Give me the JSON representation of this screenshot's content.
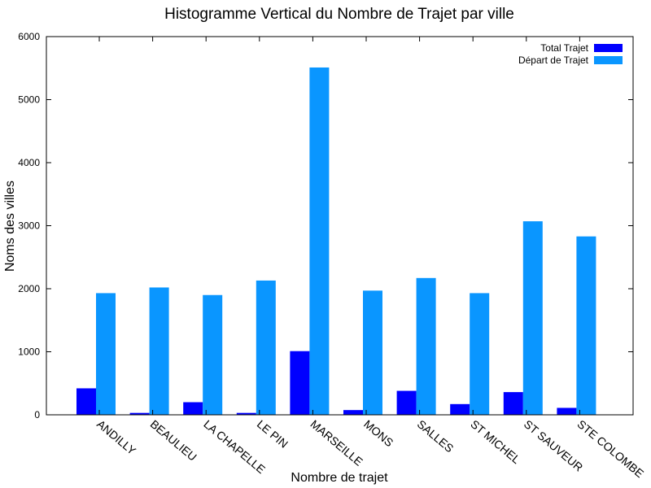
{
  "chart_data": {
    "type": "bar",
    "title": "Histogramme Vertical du Nombre de Trajet par ville",
    "xlabel": "Nombre de trajet",
    "ylabel": "Noms des villes",
    "ylim": [
      0,
      6000
    ],
    "yticks": [
      0,
      1000,
      2000,
      3000,
      4000,
      5000,
      6000
    ],
    "grid": false,
    "legend_position": "top-right",
    "categories": [
      "ANDILLY",
      "BEAULIEU",
      "LA CHAPELLE",
      "LE PIN",
      "MARSEILLE",
      "MONS",
      "SALLES",
      "ST MICHEL",
      "ST SAUVEUR",
      "STE COLOMBE"
    ],
    "series": [
      {
        "name": "Total Trajet",
        "color": "#0000ff",
        "values": [
          420,
          30,
          200,
          30,
          1010,
          75,
          380,
          170,
          360,
          110
        ]
      },
      {
        "name": "Départ de Trajet",
        "color": "#0a96ff",
        "values": [
          1930,
          2020,
          1900,
          2130,
          5510,
          1970,
          2170,
          1930,
          3070,
          2830
        ]
      }
    ]
  }
}
